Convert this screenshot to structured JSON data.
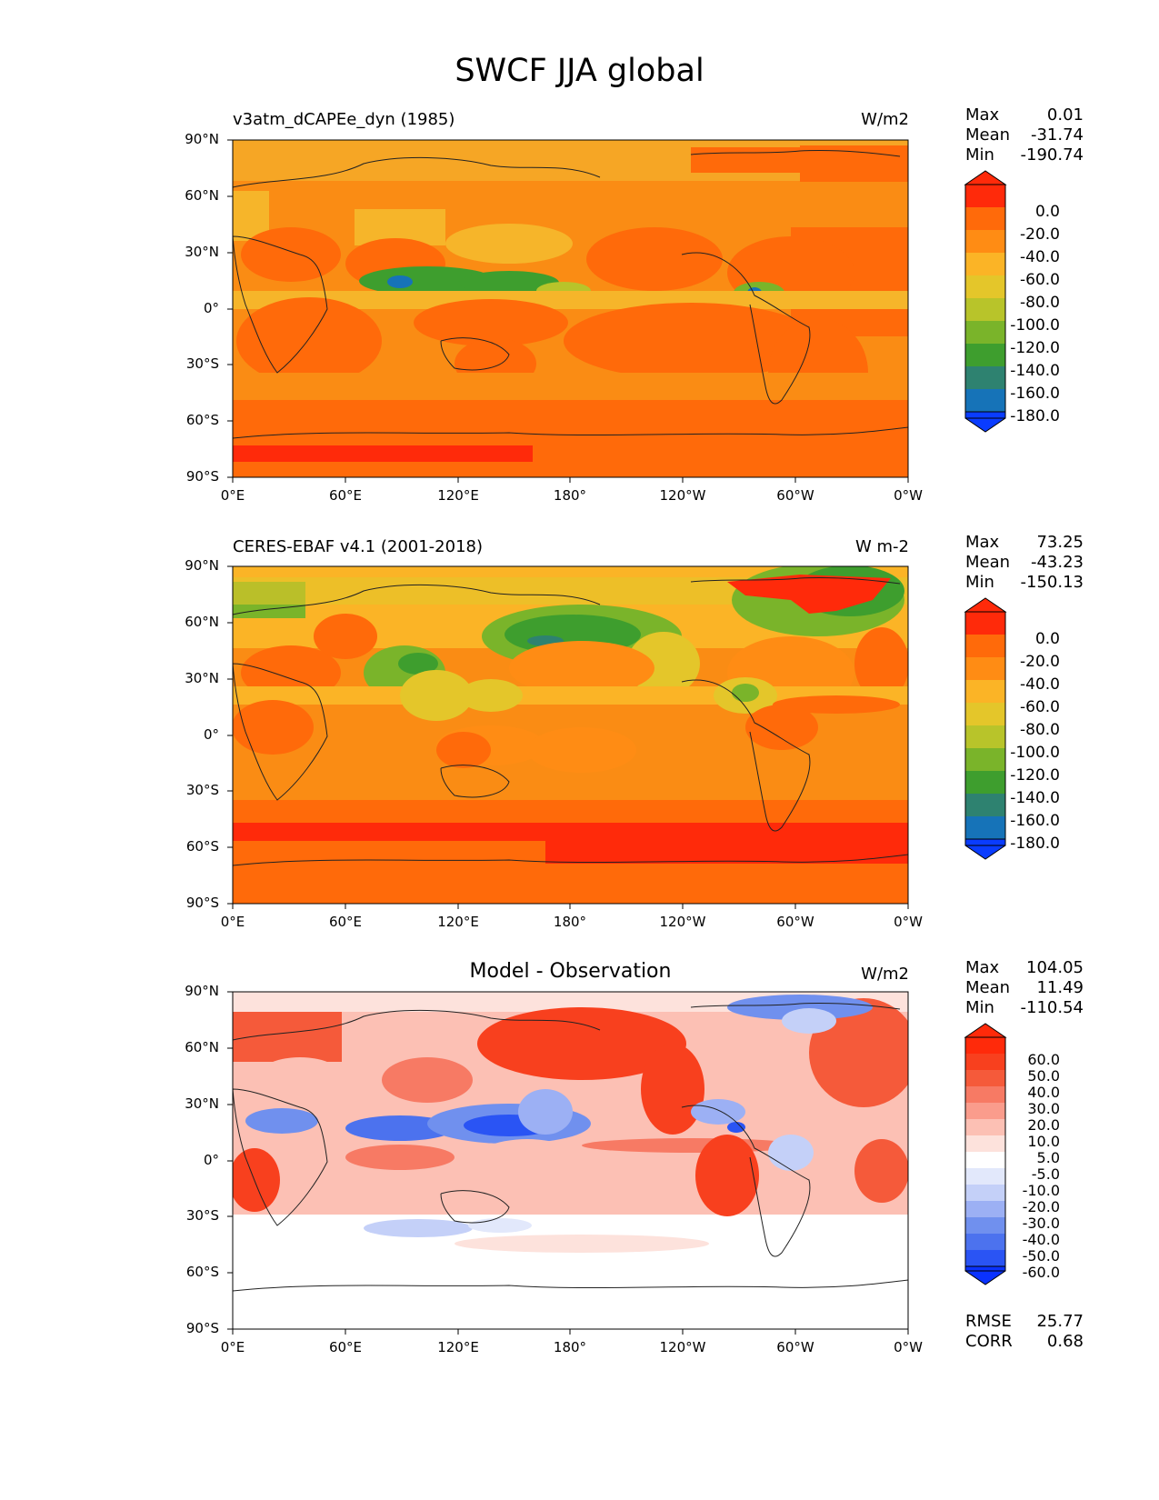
{
  "title": "SWCF JJA global",
  "lat_ticks": [
    "90°N",
    "60°N",
    "30°N",
    "0°",
    "30°S",
    "60°S",
    "90°S"
  ],
  "lon_ticks": [
    "0°E",
    "60°E",
    "120°E",
    "180°",
    "120°W",
    "60°W",
    "0°W"
  ],
  "panels": [
    {
      "subtitle_left": "v3atm_dCAPEe_dyn (1985)",
      "subtitle_right": "W/m2",
      "stats": [
        {
          "label": "Max",
          "value": "0.01"
        },
        {
          "label": "Mean",
          "value": "-31.74"
        },
        {
          "label": "Min",
          "value": "-190.74"
        }
      ]
    },
    {
      "subtitle_left": "CERES-EBAF v4.1 (2001-2018)",
      "subtitle_right": "W m-2",
      "stats": [
        {
          "label": "Max",
          "value": "73.25"
        },
        {
          "label": "Mean",
          "value": "-43.23"
        },
        {
          "label": "Min",
          "value": "-150.13"
        }
      ]
    },
    {
      "subtitle_center": "Model - Observation",
      "subtitle_right": "W/m2",
      "stats": [
        {
          "label": "Max",
          "value": "104.05"
        },
        {
          "label": "Mean",
          "value": "11.49"
        },
        {
          "label": "Min",
          "value": "-110.54"
        }
      ],
      "metrics": [
        {
          "label": "RMSE",
          "value": "25.77"
        },
        {
          "label": "CORR",
          "value": "0.68"
        }
      ]
    }
  ],
  "chart_data": [
    {
      "type": "heatmap",
      "title": "v3atm_dCAPEe_dyn (1985)",
      "units": "W/m2",
      "xlim": [
        0,
        360
      ],
      "ylim": [
        -90,
        90
      ],
      "colorbar": {
        "labels": [
          "0.0",
          "-20.0",
          "-40.0",
          "-60.0",
          "-80.0",
          "-100.0",
          "-120.0",
          "-140.0",
          "-160.0",
          "-180.0"
        ],
        "colors": [
          "#ff2a0a",
          "#ff6a0a",
          "#ff8c14",
          "#fbb426",
          "#e4c62a",
          "#b8c42a",
          "#7ab42a",
          "#3e9e2e",
          "#2e8270",
          "#1673b8",
          "#0a3cff"
        ]
      },
      "stats": {
        "max": 0.01,
        "mean": -31.74,
        "min": -190.74
      }
    },
    {
      "type": "heatmap",
      "title": "CERES-EBAF v4.1 (2001-2018)",
      "units": "W m-2",
      "xlim": [
        0,
        360
      ],
      "ylim": [
        -90,
        90
      ],
      "colorbar": {
        "labels": [
          "0.0",
          "-20.0",
          "-40.0",
          "-60.0",
          "-80.0",
          "-100.0",
          "-120.0",
          "-140.0",
          "-160.0",
          "-180.0"
        ],
        "colors": [
          "#ff2a0a",
          "#ff6a0a",
          "#ff8c14",
          "#fbb426",
          "#e4c62a",
          "#b8c42a",
          "#7ab42a",
          "#3e9e2e",
          "#2e8270",
          "#1673b8",
          "#0a3cff"
        ]
      },
      "stats": {
        "max": 73.25,
        "mean": -43.23,
        "min": -150.13
      }
    },
    {
      "type": "heatmap",
      "title": "Model - Observation",
      "units": "W/m2",
      "xlim": [
        0,
        360
      ],
      "ylim": [
        -90,
        90
      ],
      "colorbar": {
        "labels": [
          "60.0",
          "50.0",
          "40.0",
          "30.0",
          "20.0",
          "10.0",
          "5.0",
          "-5.0",
          "-10.0",
          "-20.0",
          "-30.0",
          "-40.0",
          "-50.0",
          "-60.0"
        ],
        "colors": [
          "#ff2a0a",
          "#f8401e",
          "#f55a3a",
          "#f77a64",
          "#fa9c8c",
          "#fcc0b4",
          "#fde2dc",
          "#ffffff",
          "#e2e8fb",
          "#c4d0f8",
          "#9cb0f4",
          "#7090ee",
          "#4c72ee",
          "#2a54f4",
          "#0a32ff"
        ]
      },
      "stats": {
        "max": 104.05,
        "mean": 11.49,
        "min": -110.54
      },
      "metrics": {
        "rmse": 25.77,
        "corr": 0.68
      }
    }
  ]
}
